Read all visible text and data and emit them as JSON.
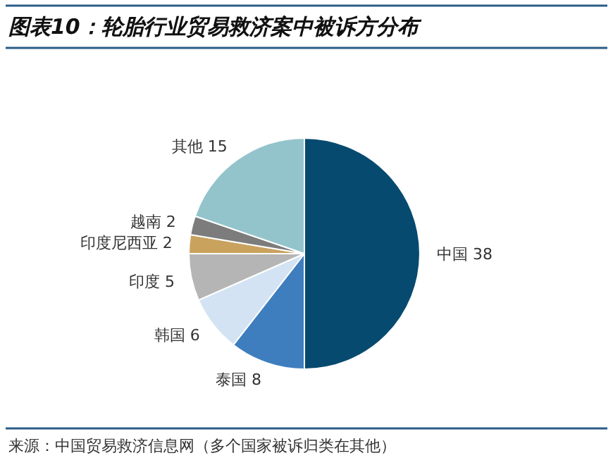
{
  "chart_data": {
    "type": "pie",
    "title": "图表10：轮胎行业贸易救济案中被诉方分布",
    "categories": [
      "中国",
      "泰国",
      "韩国",
      "印度",
      "印度尼西亚",
      "越南",
      "其他"
    ],
    "values": [
      38,
      8,
      6,
      5,
      2,
      2,
      15
    ],
    "colors": [
      "#064a70",
      "#3e7ebf",
      "#d3e3f3",
      "#b5b5b5",
      "#c9a25e",
      "#7c7c7c",
      "#93c4cb"
    ],
    "data_labels": true,
    "annotations": [
      "来源：中国贸易救济信息网（多个国家被诉归类在其他）"
    ]
  }
}
